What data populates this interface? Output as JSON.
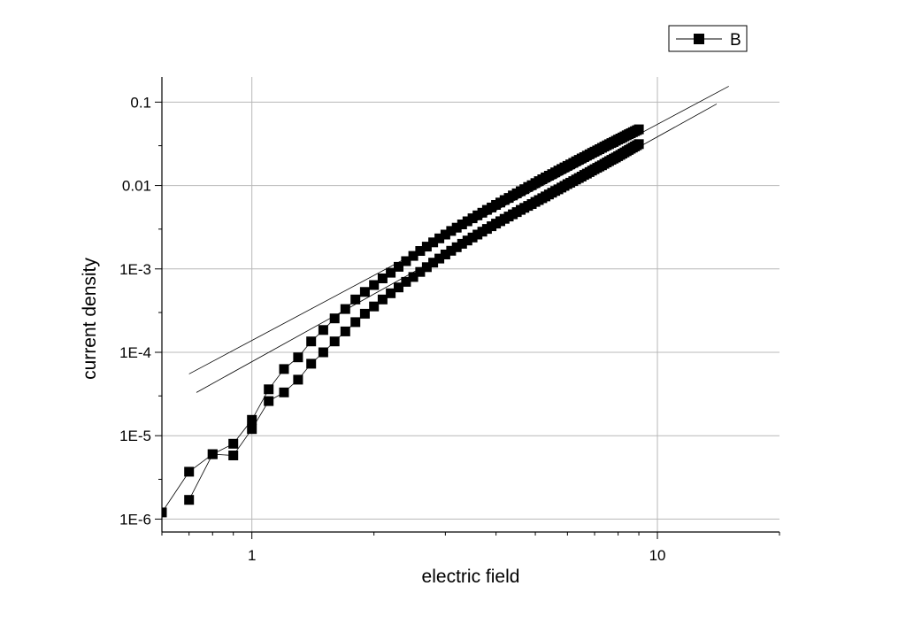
{
  "chart_data": {
    "type": "scatter",
    "xlabel": "electric field",
    "ylabel": "current density",
    "x_scale": "log",
    "y_scale": "log",
    "xlim": [
      0.6,
      20
    ],
    "ylim": [
      7e-07,
      0.2
    ],
    "x_ticks": [
      {
        "value": 1,
        "label": "1"
      },
      {
        "value": 10,
        "label": "10"
      }
    ],
    "y_ticks": [
      {
        "value": 1e-06,
        "label": "1E-6"
      },
      {
        "value": 1e-05,
        "label": "1E-5"
      },
      {
        "value": 0.0001,
        "label": "1E-4"
      },
      {
        "value": 0.001,
        "label": "1E-3"
      },
      {
        "value": 0.01,
        "label": "0.01"
      },
      {
        "value": 0.1,
        "label": "0.1"
      }
    ],
    "grid": true,
    "legend": {
      "position": "top-right",
      "entries": [
        "B"
      ]
    },
    "series": [
      {
        "name": "B",
        "marker": "square",
        "line": "solid",
        "color": "#000000",
        "x": [
          0.6,
          0.7,
          0.8,
          0.9,
          1.0,
          1.1,
          1.2,
          1.3,
          1.4,
          1.5,
          1.6,
          1.7,
          1.8,
          1.9,
          2.0,
          2.1,
          2.2,
          2.3,
          2.4,
          2.5,
          2.6,
          2.7,
          2.8,
          2.9,
          3.0,
          3.1,
          3.2,
          3.3,
          3.4,
          3.5,
          3.6,
          3.7,
          3.8,
          3.9,
          4.0,
          4.1,
          4.2,
          4.3,
          4.4,
          4.5,
          4.6,
          4.7,
          4.8,
          4.9,
          5.0,
          5.1,
          5.2,
          5.3,
          5.4,
          5.5,
          5.6,
          5.7,
          5.8,
          5.9,
          6.0,
          6.1,
          6.2,
          6.3,
          6.4,
          6.5,
          6.6,
          6.7,
          6.8,
          6.9,
          7.0,
          7.1,
          7.2,
          7.3,
          7.4,
          7.5,
          7.6,
          7.7,
          7.8,
          7.9,
          8.0,
          8.1,
          8.2,
          8.3,
          8.4,
          8.5,
          8.6,
          8.7,
          8.8,
          8.9,
          9.0
        ],
        "y": [
          1.2e-06,
          3.7e-06,
          6e-06,
          8e-06,
          1.55e-05,
          3.6e-05,
          6.3e-05,
          8.7e-05,
          0.000135,
          0.000185,
          0.000255,
          0.00033,
          0.00043,
          0.00053,
          0.00064,
          0.00077,
          0.0009,
          0.00106,
          0.00124,
          0.00143,
          0.00164,
          0.00185,
          0.00208,
          0.00232,
          0.00258,
          0.00285,
          0.00312,
          0.00342,
          0.00372,
          0.00405,
          0.00438,
          0.00472,
          0.0051,
          0.00545,
          0.00585,
          0.00625,
          0.0067,
          0.0071,
          0.0076,
          0.00805,
          0.00855,
          0.00905,
          0.0096,
          0.0101,
          0.0107,
          0.0113,
          0.0119,
          0.0125,
          0.0131,
          0.0137,
          0.0144,
          0.0151,
          0.0158,
          0.0165,
          0.0172,
          0.0179,
          0.0187,
          0.0195,
          0.0203,
          0.0211,
          0.0219,
          0.0228,
          0.0237,
          0.0246,
          0.0255,
          0.0264,
          0.0273,
          0.0283,
          0.0293,
          0.0303,
          0.0313,
          0.0323,
          0.0333,
          0.0344,
          0.0355,
          0.0366,
          0.0377,
          0.0388,
          0.04,
          0.0412,
          0.0424,
          0.0436,
          0.0448,
          0.046,
          0.0472
        ]
      },
      {
        "name": "",
        "marker": "square",
        "line": "solid",
        "color": "#000000",
        "x": [
          0.7,
          0.8,
          0.9,
          1.0,
          1.1,
          1.2,
          1.3,
          1.4,
          1.5,
          1.6,
          1.7,
          1.8,
          1.9,
          2.0,
          2.1,
          2.2,
          2.3,
          2.4,
          2.5,
          2.6,
          2.7,
          2.8,
          2.9,
          3.0,
          3.1,
          3.2,
          3.3,
          3.4,
          3.5,
          3.6,
          3.7,
          3.8,
          3.9,
          4.0,
          4.1,
          4.2,
          4.3,
          4.4,
          4.5,
          4.6,
          4.7,
          4.8,
          4.9,
          5.0,
          5.1,
          5.2,
          5.3,
          5.4,
          5.5,
          5.6,
          5.7,
          5.8,
          5.9,
          6.0,
          6.1,
          6.2,
          6.3,
          6.4,
          6.5,
          6.6,
          6.7,
          6.8,
          6.9,
          7.0,
          7.1,
          7.2,
          7.3,
          7.4,
          7.5,
          7.6,
          7.7,
          7.8,
          7.9,
          8.0,
          8.1,
          8.2,
          8.3,
          8.4,
          8.5,
          8.6,
          8.7,
          8.8,
          8.9,
          9.0
        ],
        "y": [
          1.7e-06,
          6e-06,
          5.8e-06,
          1.2e-05,
          2.6e-05,
          3.3e-05,
          4.7e-05,
          7.3e-05,
          0.0001,
          0.000135,
          0.000178,
          0.00023,
          0.00029,
          0.000355,
          0.00043,
          0.00051,
          0.0006,
          0.0007,
          0.0008,
          0.00092,
          0.00105,
          0.00119,
          0.00133,
          0.00149,
          0.00165,
          0.00182,
          0.002,
          0.00219,
          0.00238,
          0.00258,
          0.0028,
          0.00302,
          0.00325,
          0.00349,
          0.00373,
          0.00399,
          0.00425,
          0.00452,
          0.0048,
          0.0051,
          0.0054,
          0.0057,
          0.006,
          0.00635,
          0.0067,
          0.00705,
          0.0074,
          0.0078,
          0.0082,
          0.0086,
          0.009,
          0.00945,
          0.0099,
          0.0104,
          0.0108,
          0.0113,
          0.0118,
          0.0123,
          0.0128,
          0.0134,
          0.0139,
          0.0145,
          0.0151,
          0.0157,
          0.0163,
          0.0169,
          0.0175,
          0.0182,
          0.0189,
          0.0196,
          0.0203,
          0.021,
          0.0217,
          0.0225,
          0.0233,
          0.0241,
          0.0249,
          0.0258,
          0.0267,
          0.0276,
          0.0285,
          0.0294,
          0.0304,
          0.0314
        ]
      }
    ],
    "fit_lines": [
      {
        "x": [
          0.7,
          15.0
        ],
        "y": [
          5.5e-05,
          0.155
        ]
      },
      {
        "x": [
          0.73,
          14.0
        ],
        "y": [
          3.3e-05,
          0.095
        ]
      }
    ]
  }
}
